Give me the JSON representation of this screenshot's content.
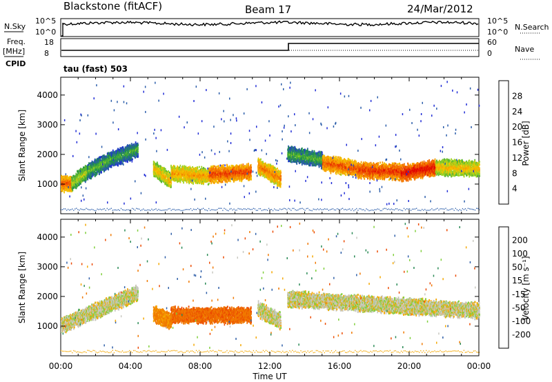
{
  "header": {
    "station": "Blackstone (fitACF)",
    "beam": "Beam 17",
    "date": "24/Mar/2012"
  },
  "sky_panel": {
    "left_label": "N.Sky",
    "left_ticks": [
      "10^5",
      "10^0"
    ],
    "right_ticks": [
      "10^5",
      "10^0"
    ],
    "right_label": "N.Search"
  },
  "freq_panel": {
    "left_label_1": "Freq.",
    "left_label_2": "[MHz]",
    "left_ticks": [
      "18",
      "8"
    ],
    "cpid_label": "CPID",
    "right_ticks": [
      "60",
      "0"
    ],
    "right_label": "Nave",
    "mode_label": "tau (fast) 503"
  },
  "chart_data": [
    {
      "type": "heatmap",
      "name": "power",
      "ylabel": "Slant Range [km]",
      "xlabel": "Time UT",
      "xlim": [
        "00:00",
        "24:00"
      ],
      "ylim": [
        0,
        4600
      ],
      "yticks": [
        "1000",
        "2000",
        "3000",
        "4000"
      ],
      "xtick_labels": [
        "00:00",
        "04:00",
        "08:00",
        "12:00",
        "16:00",
        "20:00",
        "00:00"
      ],
      "colorbar": {
        "label": "Power [dB]",
        "ticks": [
          "4",
          "8",
          "12",
          "16",
          "20",
          "24",
          "28"
        ],
        "colors": [
          "#1f2bd6",
          "#2a5caa",
          "#1f8e4e",
          "#55b531",
          "#9ed322",
          "#f2c400",
          "#f7a000",
          "#f26a00",
          "#e82d00",
          "#e00000"
        ]
      },
      "bands": [
        {
          "t0": 0.0,
          "t1": 0.6,
          "r0": 1000,
          "r1": 1000,
          "level": 24
        },
        {
          "t0": 0.6,
          "t1": 1.5,
          "r0": 1000,
          "r1": 1400,
          "level": 14
        },
        {
          "t0": 1.5,
          "t1": 2.8,
          "r0": 1400,
          "r1": 1800,
          "level": 10
        },
        {
          "t0": 2.8,
          "t1": 4.4,
          "r0": 1800,
          "r1": 2150,
          "level": 9
        },
        {
          "t0": 5.3,
          "t1": 6.3,
          "r0": 1500,
          "r1": 1100,
          "level": 18
        },
        {
          "t0": 6.3,
          "t1": 8.5,
          "r0": 1350,
          "r1": 1250,
          "level": 20
        },
        {
          "t0": 8.5,
          "t1": 10.9,
          "r0": 1300,
          "r1": 1400,
          "level": 25
        },
        {
          "t0": 11.3,
          "t1": 12.6,
          "r0": 1600,
          "r1": 1150,
          "level": 22
        },
        {
          "t0": 13.0,
          "t1": 15.0,
          "r0": 2000,
          "r1": 1800,
          "level": 10
        },
        {
          "t0": 15.0,
          "t1": 17.0,
          "r0": 1700,
          "r1": 1500,
          "level": 24
        },
        {
          "t0": 17.0,
          "t1": 19.5,
          "r0": 1450,
          "r1": 1400,
          "level": 26
        },
        {
          "t0": 19.5,
          "t1": 21.5,
          "r0": 1350,
          "r1": 1550,
          "level": 28
        },
        {
          "t0": 21.5,
          "t1": 24.0,
          "r0": 1550,
          "r1": 1500,
          "level": 18
        }
      ]
    },
    {
      "type": "heatmap",
      "name": "velocity",
      "ylabel": "Slant Range [km]",
      "xlabel": "Time UT",
      "xlim": [
        "00:00",
        "24:00"
      ],
      "ylim": [
        0,
        4600
      ],
      "yticks": [
        "1000",
        "2000",
        "3000",
        "4000"
      ],
      "xtick_labels": [
        "00:00",
        "04:00",
        "08:00",
        "12:00",
        "16:00",
        "20:00",
        "00:00"
      ],
      "colorbar": {
        "label": "Velocity [m s⁻¹]",
        "ticks": [
          "200",
          "100",
          "50",
          "15",
          "-15",
          "-50",
          "-100",
          "-200"
        ],
        "colors": [
          "#2233aa",
          "#2f5fa8",
          "#2a8a55",
          "#7fcf3a",
          "#c8c8c0",
          "#f5a800",
          "#f07800",
          "#ec4a00",
          "#e00000"
        ]
      },
      "bands": [
        {
          "t0": 0.0,
          "t1": 4.4,
          "r0": 1000,
          "r1": 2100,
          "level": 0
        },
        {
          "t0": 5.3,
          "t1": 6.3,
          "r0": 1400,
          "r1": 1150,
          "level": -60
        },
        {
          "t0": 6.3,
          "t1": 10.9,
          "r0": 1350,
          "r1": 1350,
          "level": -90
        },
        {
          "t0": 11.3,
          "t1": 12.6,
          "r0": 1550,
          "r1": 1150,
          "level": 0
        },
        {
          "t0": 13.0,
          "t1": 24.0,
          "r0": 1900,
          "r1": 1500,
          "level": 0
        }
      ]
    }
  ]
}
